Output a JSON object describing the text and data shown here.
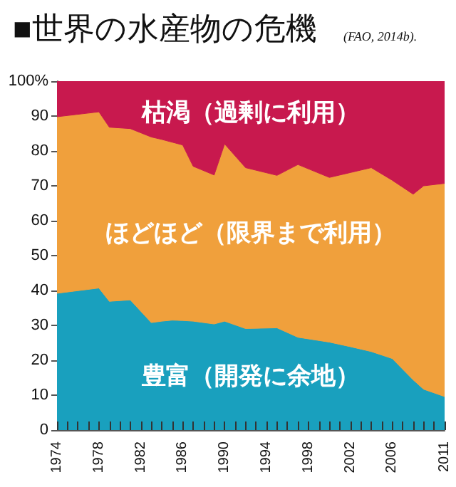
{
  "chart_data": {
    "type": "area",
    "title": "■世界の水産物の危機",
    "subtitle": "(FAO, 2014b).",
    "stacked": true,
    "legend": false,
    "grid": false,
    "x": [
      1974,
      1978,
      1979,
      1981,
      1983,
      1984,
      1985,
      1986,
      1987,
      1989,
      1990,
      1992,
      1995,
      1997,
      2000,
      2002,
      2004,
      2006,
      2008,
      2009,
      2011
    ],
    "xlim": [
      1974,
      2011
    ],
    "xticks": [
      1974,
      {
        "value": 1975,
        "label": null
      },
      {
        "value": 1976,
        "label": null
      },
      {
        "value": 1977,
        "label": null
      },
      1978,
      {
        "value": 1979,
        "label": null
      },
      {
        "value": 1980,
        "label": null
      },
      {
        "value": 1981,
        "label": null
      },
      1982,
      {
        "value": 1983,
        "label": null
      },
      {
        "value": 1984,
        "label": null
      },
      {
        "value": 1985,
        "label": null
      },
      1986,
      {
        "value": 1987,
        "label": null
      },
      {
        "value": 1988,
        "label": null
      },
      {
        "value": 1989,
        "label": null
      },
      1990,
      {
        "value": 1991,
        "label": null
      },
      {
        "value": 1992,
        "label": null
      },
      {
        "value": 1993,
        "label": null
      },
      1994,
      {
        "value": 1995,
        "label": null
      },
      {
        "value": 1996,
        "label": null
      },
      {
        "value": 1997,
        "label": null
      },
      1998,
      {
        "value": 1999,
        "label": null
      },
      {
        "value": 2000,
        "label": null
      },
      {
        "value": 2001,
        "label": null
      },
      2002,
      {
        "value": 2003,
        "label": null
      },
      {
        "value": 2004,
        "label": null
      },
      {
        "value": 2005,
        "label": null
      },
      2006,
      {
        "value": 2007,
        "label": null
      },
      {
        "value": 2008,
        "label": null
      },
      {
        "value": 2009,
        "label": null
      },
      {
        "value": 2010,
        "label": null
      },
      2011
    ],
    "ylim": [
      0,
      100
    ],
    "yticks": [
      0,
      10,
      20,
      30,
      40,
      50,
      60,
      70,
      80,
      90,
      {
        "value": 100,
        "label": "100%"
      }
    ],
    "series": [
      {
        "name": "豊富（開発に余地）",
        "color": "#19a0be",
        "values": [
          39.2,
          40.7,
          36.9,
          37.3,
          30.8,
          31.2,
          31.5,
          31.4,
          31.2,
          30.4,
          31.2,
          29.1,
          29.3,
          26.6,
          25.2,
          23.9,
          22.5,
          20.5,
          14.4,
          11.7,
          9.6
        ]
      },
      {
        "name": "ほどほど（限界まで利用）",
        "color": "#f0a03c",
        "values": [
          50.6,
          50.5,
          49.9,
          49.1,
          53.2,
          52.1,
          51.0,
          50.3,
          44.4,
          42.7,
          50.8,
          46.1,
          43.7,
          49.5,
          47.2,
          49.9,
          52.7,
          51.1,
          53.2,
          58.3,
          61.1
        ]
      },
      {
        "name": "枯渇（過剰に利用）",
        "color": "#c8194e",
        "values": [
          10.2,
          8.8,
          13.2,
          13.6,
          16.0,
          16.7,
          17.5,
          18.3,
          24.4,
          26.9,
          18.0,
          24.8,
          27.0,
          23.9,
          27.6,
          26.2,
          24.8,
          28.4,
          32.4,
          30.0,
          29.3
        ]
      }
    ]
  }
}
